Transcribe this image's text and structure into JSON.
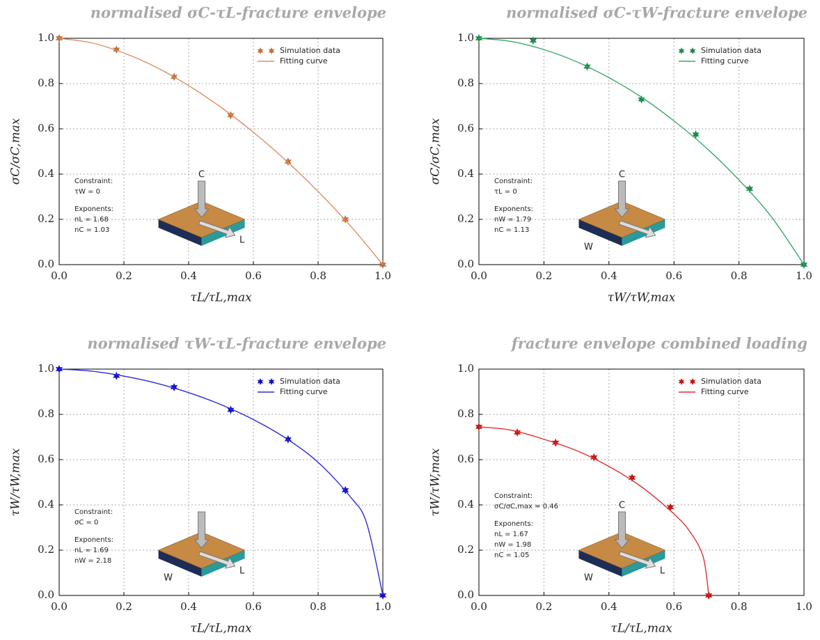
{
  "chart_data": [
    {
      "type": "line",
      "title": "normalised σC-τL-fracture envelope",
      "xlabel": "τL/τL,max",
      "ylabel": "σC/σC,max",
      "xlim": [
        0,
        1
      ],
      "ylim": [
        0,
        1
      ],
      "xticks": [
        {
          "value": 0,
          "label": "0.0"
        },
        {
          "value": 0.2,
          "label": "0.2"
        },
        {
          "value": 0.4,
          "label": "0.4"
        },
        {
          "value": 0.6,
          "label": "0.6"
        },
        {
          "value": 0.8,
          "label": "0.8"
        },
        {
          "value": 1,
          "label": "1.0"
        }
      ],
      "yticks": [
        {
          "value": 0,
          "label": "0.0"
        },
        {
          "value": 0.2,
          "label": "0.2"
        },
        {
          "value": 0.4,
          "label": "0.4"
        },
        {
          "value": 0.6,
          "label": "0.6"
        },
        {
          "value": 0.8,
          "label": "0.8"
        },
        {
          "value": 1,
          "label": "1.0"
        }
      ],
      "grid": true,
      "legend": "upper right",
      "series": [
        {
          "name": "Simulation data",
          "color": "#c0703a",
          "marker": "star",
          "x": [
            0,
            0.177,
            0.355,
            0.53,
            0.707,
            0.884,
            1
          ],
          "values": [
            1,
            0.95,
            0.83,
            0.66,
            0.455,
            0.2,
            0
          ]
        },
        {
          "name": "Fitting curve",
          "color": "#dd9064",
          "x": [
            0,
            0.1,
            0.2,
            0.3,
            0.4,
            0.5,
            0.6,
            0.7,
            0.8,
            0.9,
            1
          ],
          "values": [
            1,
            0.98,
            0.935,
            0.872,
            0.791,
            0.695,
            0.585,
            0.461,
            0.323,
            0.171,
            0
          ]
        }
      ],
      "annotations": [
        "Constraint:",
        "τW = 0",
        "Exponents:",
        "nL = 1.68",
        "nC = 1.03"
      ],
      "icon_labels": [
        "C",
        "L"
      ]
    },
    {
      "type": "line",
      "title": "normalised σC-τW-fracture envelope",
      "xlabel": "τW/τW,max",
      "ylabel": "σC/σC,max",
      "xlim": [
        0,
        1
      ],
      "ylim": [
        0,
        1
      ],
      "xticks": [
        {
          "value": 0,
          "label": "0.0"
        },
        {
          "value": 0.2,
          "label": "0.2"
        },
        {
          "value": 0.4,
          "label": "0.4"
        },
        {
          "value": 0.6,
          "label": "0.6"
        },
        {
          "value": 0.8,
          "label": "0.8"
        },
        {
          "value": 1,
          "label": "1.0"
        }
      ],
      "yticks": [
        {
          "value": 0,
          "label": "0.0"
        },
        {
          "value": 0.2,
          "label": "0.2"
        },
        {
          "value": 0.4,
          "label": "0.4"
        },
        {
          "value": 0.6,
          "label": "0.6"
        },
        {
          "value": 0.8,
          "label": "0.8"
        },
        {
          "value": 1,
          "label": "1.0"
        }
      ],
      "grid": true,
      "legend": "upper right",
      "series": [
        {
          "name": "Simulation data",
          "color": "#1f8a4c",
          "marker": "star",
          "x": [
            0,
            0.167,
            0.333,
            0.5,
            0.667,
            0.833,
            1
          ],
          "values": [
            1,
            0.99,
            0.875,
            0.73,
            0.575,
            0.335,
            0
          ]
        },
        {
          "name": "Fitting curve",
          "color": "#3aaa6a",
          "x": [
            0,
            0.1,
            0.2,
            0.3,
            0.4,
            0.5,
            0.6,
            0.7,
            0.8,
            0.9,
            1
          ],
          "values": [
            1,
            0.986,
            0.95,
            0.897,
            0.826,
            0.74,
            0.635,
            0.515,
            0.374,
            0.211,
            0
          ]
        }
      ],
      "annotations": [
        "Constraint:",
        "τL = 0",
        "Exponents:",
        "nW = 1.79",
        "nC = 1.13"
      ],
      "icon_labels": [
        "C",
        "W"
      ]
    },
    {
      "type": "line",
      "title": "normalised τW-τL-fracture envelope",
      "xlabel": "τL/τL,max",
      "ylabel": "τW/τW,max",
      "xlim": [
        0,
        1
      ],
      "ylim": [
        0,
        1
      ],
      "xticks": [
        {
          "value": 0,
          "label": "0.0"
        },
        {
          "value": 0.2,
          "label": "0.2"
        },
        {
          "value": 0.4,
          "label": "0.4"
        },
        {
          "value": 0.6,
          "label": "0.6"
        },
        {
          "value": 0.8,
          "label": "0.8"
        },
        {
          "value": 1,
          "label": "1.0"
        }
      ],
      "yticks": [
        {
          "value": 0,
          "label": "0.0"
        },
        {
          "value": 0.2,
          "label": "0.2"
        },
        {
          "value": 0.4,
          "label": "0.4"
        },
        {
          "value": 0.6,
          "label": "0.6"
        },
        {
          "value": 0.8,
          "label": "0.8"
        },
        {
          "value": 1,
          "label": "1.0"
        }
      ],
      "grid": true,
      "legend": "upper right",
      "series": [
        {
          "name": "Simulation data",
          "color": "#1010c8",
          "marker": "star",
          "x": [
            0,
            0.177,
            0.355,
            0.53,
            0.707,
            0.884,
            1
          ],
          "values": [
            1,
            0.97,
            0.92,
            0.82,
            0.69,
            0.465,
            0
          ]
        },
        {
          "name": "Fitting curve",
          "color": "#2a2ae0",
          "x": [
            0,
            0.1,
            0.2,
            0.3,
            0.4,
            0.5,
            0.6,
            0.7,
            0.8,
            0.9,
            0.95,
            1
          ],
          "values": [
            1,
            0.991,
            0.969,
            0.938,
            0.896,
            0.843,
            0.777,
            0.695,
            0.588,
            0.435,
            0.319,
            0
          ]
        }
      ],
      "annotations": [
        "Constraint:",
        "σC = 0",
        "Exponents:",
        "nL = 1.69",
        "nW = 2.18"
      ],
      "icon_labels": [
        "W",
        "L"
      ]
    },
    {
      "type": "line",
      "title": "fracture envelope combined loading",
      "xlabel": "τL/τL,max",
      "ylabel": "τW/τW,max",
      "xlim": [
        0,
        1
      ],
      "ylim": [
        0,
        1
      ],
      "xticks": [
        {
          "value": 0,
          "label": "0.0"
        },
        {
          "value": 0.2,
          "label": "0.2"
        },
        {
          "value": 0.4,
          "label": "0.4"
        },
        {
          "value": 0.6,
          "label": "0.6"
        },
        {
          "value": 0.8,
          "label": "0.8"
        },
        {
          "value": 1,
          "label": "1.0"
        }
      ],
      "yticks": [
        {
          "value": 0,
          "label": "0.0"
        },
        {
          "value": 0.2,
          "label": "0.2"
        },
        {
          "value": 0.4,
          "label": "0.4"
        },
        {
          "value": 0.6,
          "label": "0.6"
        },
        {
          "value": 0.8,
          "label": "0.8"
        },
        {
          "value": 1,
          "label": "1.0"
        }
      ],
      "grid": true,
      "legend": "upper right",
      "series": [
        {
          "name": "Simulation data",
          "color": "#c01818",
          "marker": "star",
          "x": [
            0,
            0.118,
            0.236,
            0.354,
            0.471,
            0.589,
            0.707
          ],
          "values": [
            0.745,
            0.72,
            0.675,
            0.61,
            0.52,
            0.39,
            0
          ]
        },
        {
          "name": "Fitting curve",
          "color": "#e03030",
          "x": [
            0,
            0.1,
            0.2,
            0.3,
            0.4,
            0.5,
            0.6,
            0.65,
            0.69,
            0.707
          ],
          "values": [
            0.745,
            0.73,
            0.69,
            0.64,
            0.57,
            0.48,
            0.36,
            0.28,
            0.17,
            0
          ]
        }
      ],
      "annotations": [
        "Constraint:",
        "σC/σC,max ≈ 0.46",
        "Exponents:",
        "nL = 1.67",
        "nW = 1.98",
        "nC = 1.05"
      ],
      "icon_labels": [
        "C",
        "W",
        "L"
      ]
    }
  ]
}
